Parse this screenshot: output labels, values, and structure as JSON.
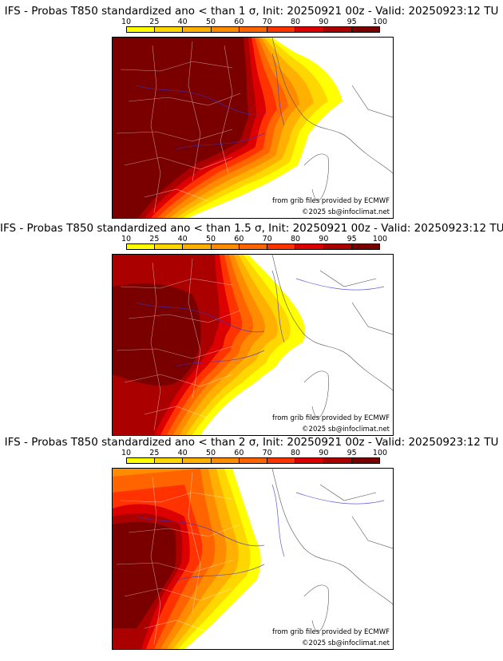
{
  "scale": {
    "ticks": [
      "10",
      "25",
      "40",
      "50",
      "60",
      "70",
      "80",
      "90",
      "95",
      "100"
    ],
    "colors": [
      "#ffff00",
      "#ffd700",
      "#ffb000",
      "#ff8c00",
      "#ff6400",
      "#ff3200",
      "#dd0000",
      "#aa0000",
      "#7a0000"
    ]
  },
  "credits": {
    "source": "from grib files provided by ECMWF",
    "copyright": "©2025 sb@infoclimat.net"
  },
  "panels": [
    {
      "title": "IFS - Probas T850  standardized ano < than 1 σ, Init: 20250921 00z - Valid: 20250923:12 TU"
    },
    {
      "title": "IFS - Probas T850  standardized ano < than 1.5 σ, Init: 20250921 00z - Valid: 20250923:12 TU"
    },
    {
      "title": "IFS - Probas T850  standardized ano < than 2 σ, Init: 20250921 00z - Valid: 20250923:12 TU"
    }
  ]
}
